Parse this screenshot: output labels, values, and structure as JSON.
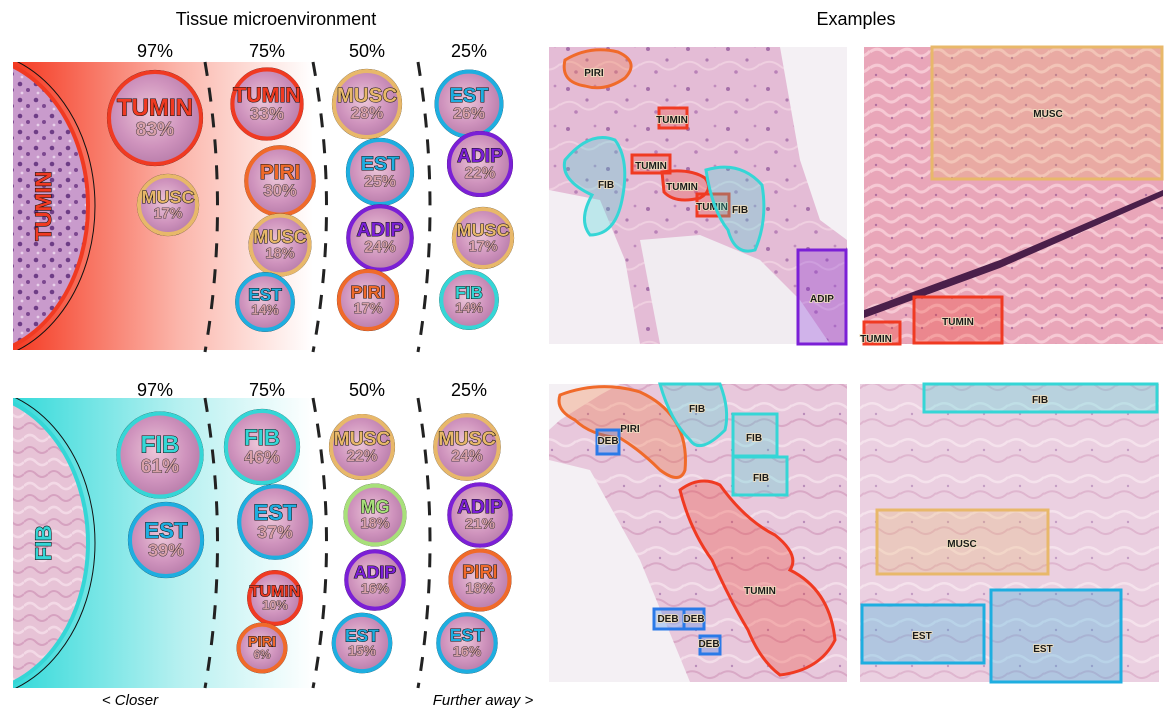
{
  "titles": {
    "left": "Tissue microenvironment",
    "right": "Examples"
  },
  "axis": {
    "closer": "< Closer",
    "further": "Further away >"
  },
  "colors": {
    "TUMIN": "#f03a22",
    "FIB": "#35d6d6",
    "MUSC": "#e8b86a",
    "EST": "#1eaee0",
    "ADIP": "#7b1fd6",
    "PIRI": "#f06a2a",
    "MG": "#a8e07a",
    "DEB": "#2a7ae8"
  },
  "panels": [
    {
      "center": "TUMIN",
      "headers": [
        "97%",
        "75%",
        "50%",
        "25%"
      ],
      "bubbles": [
        {
          "label": "TUMIN",
          "pct": "83%",
          "col": 0,
          "row": 0,
          "level": 0.83
        },
        {
          "label": "MUSC",
          "pct": "17%",
          "col": 0,
          "row": 1,
          "level": 0.17
        },
        {
          "label": "TUMIN",
          "pct": "33%",
          "col": 1,
          "row": 0,
          "level": 0.33
        },
        {
          "label": "PIRI",
          "pct": "30%",
          "col": 1,
          "row": 1,
          "level": 0.3
        },
        {
          "label": "MUSC",
          "pct": "18%",
          "col": 1,
          "row": 2,
          "level": 0.18
        },
        {
          "label": "EST",
          "pct": "14%",
          "col": 1,
          "row": 3,
          "level": 0.14
        },
        {
          "label": "MUSC",
          "pct": "28%",
          "col": 2,
          "row": 0,
          "level": 0.28
        },
        {
          "label": "EST",
          "pct": "25%",
          "col": 2,
          "row": 1,
          "level": 0.25
        },
        {
          "label": "ADIP",
          "pct": "24%",
          "col": 2,
          "row": 2,
          "level": 0.24
        },
        {
          "label": "PIRI",
          "pct": "17%",
          "col": 2,
          "row": 3,
          "level": 0.17
        },
        {
          "label": "EST",
          "pct": "26%",
          "col": 3,
          "row": 0,
          "level": 0.26
        },
        {
          "label": "ADIP",
          "pct": "22%",
          "col": 3,
          "row": 1,
          "level": 0.22
        },
        {
          "label": "MUSC",
          "pct": "17%",
          "col": 3,
          "row": 2,
          "level": 0.17
        },
        {
          "label": "FIB",
          "pct": "14%",
          "col": 3,
          "row": 3,
          "level": 0.14
        }
      ]
    },
    {
      "center": "FIB",
      "headers": [
        "97%",
        "75%",
        "50%",
        "25%"
      ],
      "bubbles": [
        {
          "label": "FIB",
          "pct": "61%",
          "col": 0,
          "row": 0,
          "level": 0.61
        },
        {
          "label": "EST",
          "pct": "39%",
          "col": 0,
          "row": 1,
          "level": 0.39
        },
        {
          "label": "FIB",
          "pct": "46%",
          "col": 1,
          "row": 0,
          "level": 0.46
        },
        {
          "label": "EST",
          "pct": "37%",
          "col": 1,
          "row": 1,
          "level": 0.37
        },
        {
          "label": "TUMIN",
          "pct": "10%",
          "col": 1,
          "row": 2,
          "level": 0.1
        },
        {
          "label": "PIRI",
          "pct": "6%",
          "col": 1,
          "row": 3,
          "level": 0.06
        },
        {
          "label": "MUSC",
          "pct": "22%",
          "col": 2,
          "row": 0,
          "level": 0.22
        },
        {
          "label": "MG",
          "pct": "18%",
          "col": 2,
          "row": 1,
          "level": 0.18
        },
        {
          "label": "ADIP",
          "pct": "16%",
          "col": 2,
          "row": 2,
          "level": 0.16
        },
        {
          "label": "EST",
          "pct": "15%",
          "col": 2,
          "row": 3,
          "level": 0.15
        },
        {
          "label": "MUSC",
          "pct": "24%",
          "col": 3,
          "row": 0,
          "level": 0.24
        },
        {
          "label": "ADIP",
          "pct": "21%",
          "col": 3,
          "row": 1,
          "level": 0.21
        },
        {
          "label": "PIRI",
          "pct": "18%",
          "col": 3,
          "row": 2,
          "level": 0.18
        },
        {
          "label": "EST",
          "pct": "16%",
          "col": 3,
          "row": 3,
          "level": 0.16
        }
      ]
    }
  ],
  "examples": [
    {
      "annotations": [
        {
          "label": "PIRI",
          "type": "PIRI"
        },
        {
          "label": "TUMIN",
          "type": "TUMIN"
        },
        {
          "label": "TUMIN",
          "type": "TUMIN"
        },
        {
          "label": "TUMIN",
          "type": "TUMIN"
        },
        {
          "label": "TUMIN",
          "type": "TUMIN"
        },
        {
          "label": "FIB",
          "type": "FIB"
        },
        {
          "label": "FIB",
          "type": "FIB"
        },
        {
          "label": "ADIP",
          "type": "ADIP"
        }
      ]
    },
    {
      "annotations": [
        {
          "label": "MUSC",
          "type": "MUSC"
        },
        {
          "label": "TUMIN",
          "type": "TUMIN"
        },
        {
          "label": "TUMIN",
          "type": "TUMIN"
        }
      ]
    },
    {
      "annotations": [
        {
          "label": "PIRI",
          "type": "PIRI"
        },
        {
          "label": "DEB",
          "type": "DEB"
        },
        {
          "label": "FIB",
          "type": "FIB"
        },
        {
          "label": "FIB",
          "type": "FIB"
        },
        {
          "label": "FIB",
          "type": "FIB"
        },
        {
          "label": "TUMIN",
          "type": "TUMIN"
        },
        {
          "label": "DEB",
          "type": "DEB"
        },
        {
          "label": "DEB",
          "type": "DEB"
        },
        {
          "label": "DEB",
          "type": "DEB"
        }
      ]
    },
    {
      "annotations": [
        {
          "label": "FIB",
          "type": "FIB"
        },
        {
          "label": "MUSC",
          "type": "MUSC"
        },
        {
          "label": "EST",
          "type": "EST"
        },
        {
          "label": "EST",
          "type": "EST"
        }
      ]
    }
  ]
}
